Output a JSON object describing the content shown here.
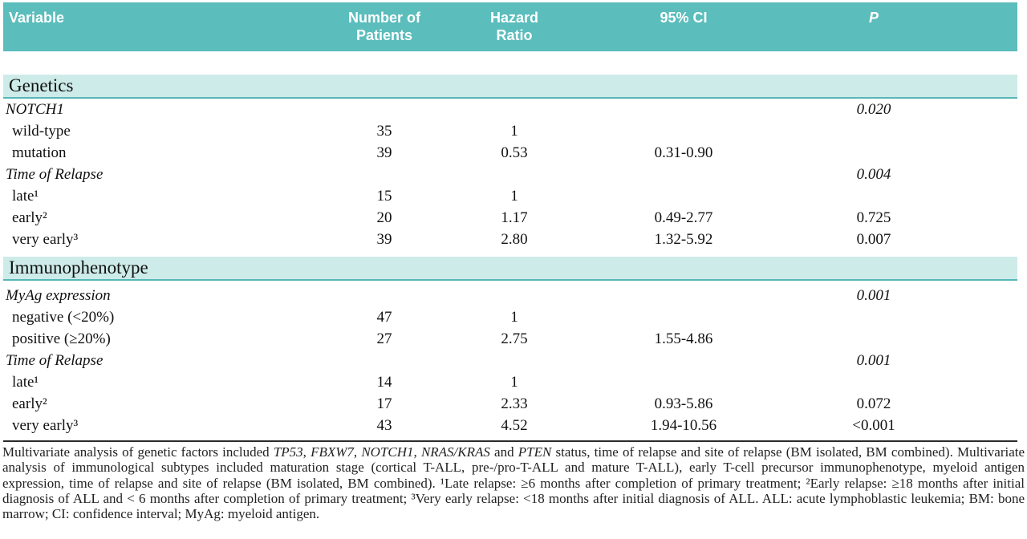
{
  "colors": {
    "header_teal": "#5bbdbc",
    "section_band_light_teal": "#cdebe9",
    "section_band_border_teal": "#54b7b6",
    "bottom_rule_dark": "#2b2b2b",
    "header_text": "#ffffff",
    "body_text": "#111111"
  },
  "header": {
    "variable": "Variable",
    "patients_l1": "Number of",
    "patients_l2": "Patients",
    "hazard_l1": "Hazard",
    "hazard_l2": "Ratio",
    "ci": "95% CI",
    "p": "P"
  },
  "table": {
    "sections": [
      {
        "title": "Genetics",
        "rows": [
          {
            "variable": "NOTCH1",
            "n": "",
            "hr": "",
            "ci": "",
            "p": "0.020"
          },
          {
            "variable": "wild-type",
            "n": "35",
            "hr": "1",
            "ci": "",
            "p": ""
          },
          {
            "variable": "mutation",
            "n": "39",
            "hr": "0.53",
            "ci": "0.31-0.90",
            "p": ""
          },
          {
            "variable": "Time of Relapse",
            "n": "",
            "hr": "",
            "ci": "",
            "p": "0.004"
          },
          {
            "variable": "late¹",
            "n": "15",
            "hr": "1",
            "ci": "",
            "p": ""
          },
          {
            "variable": "early²",
            "n": "20",
            "hr": "1.17",
            "ci": "0.49-2.77",
            "p": "0.725"
          },
          {
            "variable": "very early³",
            "n": "39",
            "hr": "2.80",
            "ci": "1.32-5.92",
            "p": "0.007"
          }
        ]
      },
      {
        "title": "Immunophenotype",
        "rows": [
          {
            "variable": "MyAg expression",
            "n": "",
            "hr": "",
            "ci": "",
            "p": "0.001"
          },
          {
            "variable": "negative (<20%)",
            "n": "47",
            "hr": "1",
            "ci": "",
            "p": ""
          },
          {
            "variable": "positive (≥20%)",
            "n": "27",
            "hr": "2.75",
            "ci": "1.55-4.86",
            "p": ""
          },
          {
            "variable": "Time of Relapse",
            "n": "",
            "hr": "",
            "ci": "",
            "p": "0.001"
          },
          {
            "variable": "late¹",
            "n": "14",
            "hr": "1",
            "ci": "",
            "p": ""
          },
          {
            "variable": "early²",
            "n": "17",
            "hr": "2.33",
            "ci": "0.93-5.86",
            "p": "0.072"
          },
          {
            "variable": "very early³",
            "n": "43",
            "hr": "4.52",
            "ci": "1.94-10.56",
            "p": "<0.001"
          }
        ]
      }
    ]
  },
  "footnote": {
    "segments": [
      {
        "text": "Multivariate analysis of genetic factors included "
      },
      {
        "text": "TP53",
        "italic": true
      },
      {
        "text": ", "
      },
      {
        "text": "FBXW7",
        "italic": true
      },
      {
        "text": ", "
      },
      {
        "text": "NOTCH1",
        "italic": true
      },
      {
        "text": ", "
      },
      {
        "text": "NRAS/KRAS",
        "italic": true
      },
      {
        "text": " and "
      },
      {
        "text": "PTEN",
        "italic": true
      },
      {
        "text": " status, time of relapse and site of relapse (BM isolated, BM combined). Multivariate analysis of immunological subtypes included maturation stage (cortical T-ALL, pre-/pro-T-ALL and mature T-ALL), early T-cell precursor immunophenotype, myeloid antigen expression, time of relapse and site of relapse (BM isolated, BM combined). ¹Late relapse: ≥6 months after completion of primary treatment; ²Early relapse: ≥18 months after initial diagnosis of ALL and < 6 months after completion of primary treatment; ³Very early relapse: <18 months after initial diagnosis of ALL. ALL: acute lymphoblastic leukemia; BM: bone marrow; CI: confidence interval; MyAg: myeloid antigen."
      }
    ]
  }
}
